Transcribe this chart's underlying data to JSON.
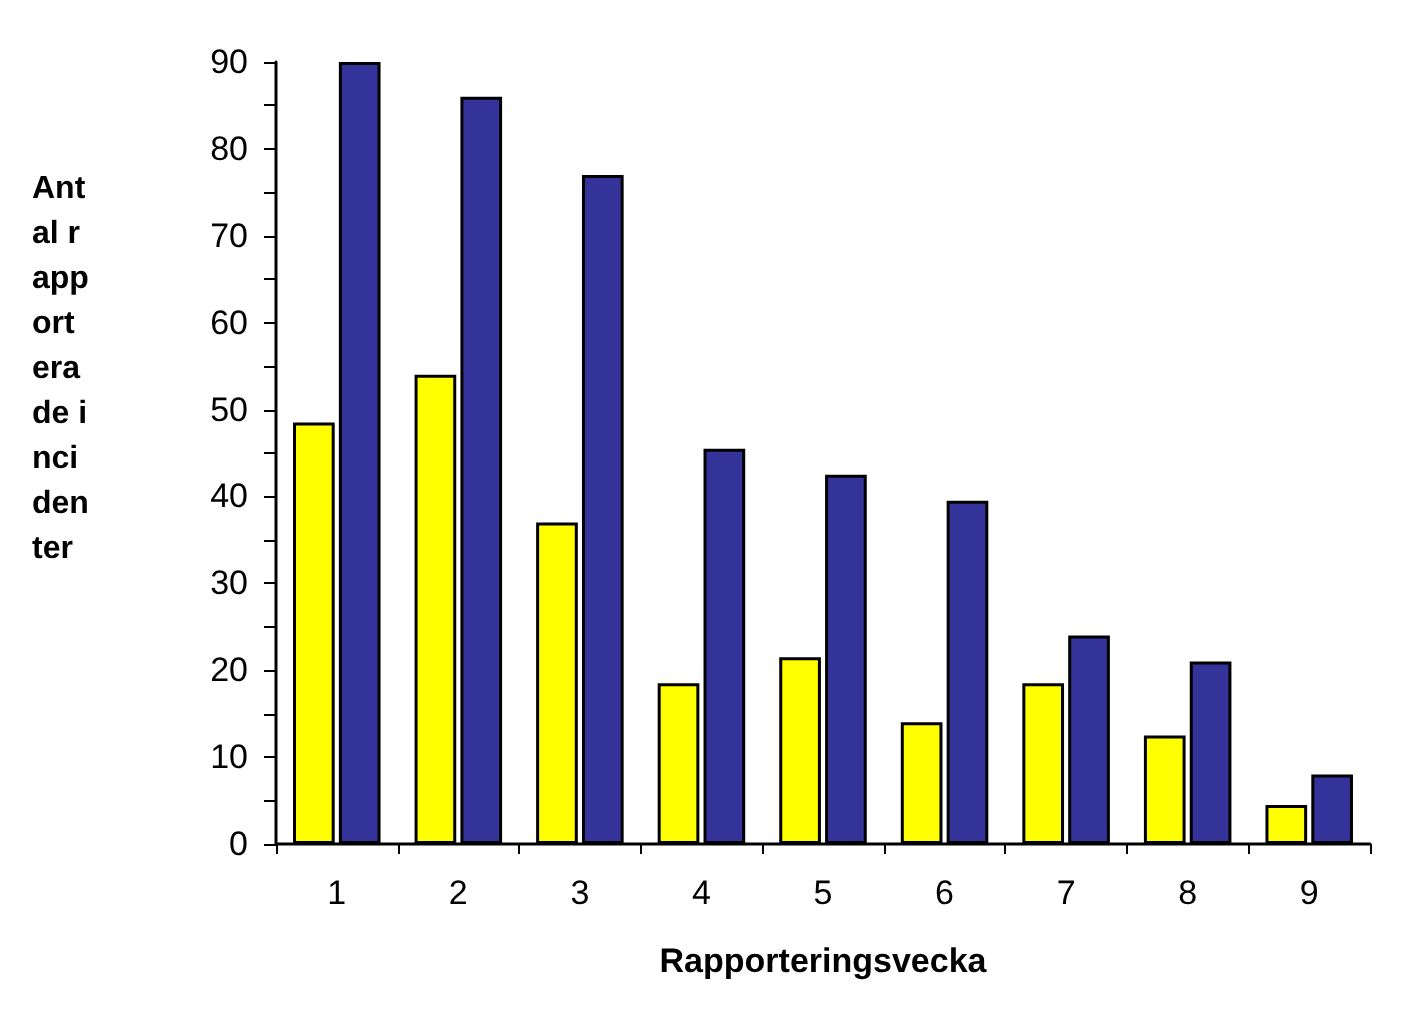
{
  "chart_data": {
    "type": "bar",
    "xlabel": "Rapporteringsvecka",
    "ylabel": "Antal rapporterade incidenter",
    "categories": [
      "1",
      "2",
      "3",
      "4",
      "5",
      "6",
      "7",
      "8",
      "9"
    ],
    "series": [
      {
        "color": "#ffff00",
        "values": [
          48.5,
          54,
          37,
          18.5,
          21.5,
          14,
          18.5,
          12.5,
          4.5
        ]
      },
      {
        "color": "#333399",
        "values": [
          90,
          86,
          77,
          45.5,
          42.5,
          39.5,
          24,
          21,
          8
        ]
      }
    ],
    "ylim": [
      0,
      90
    ],
    "yticks": [
      0,
      10,
      20,
      30,
      40,
      50,
      60,
      70,
      80,
      90
    ],
    "grid": false
  }
}
